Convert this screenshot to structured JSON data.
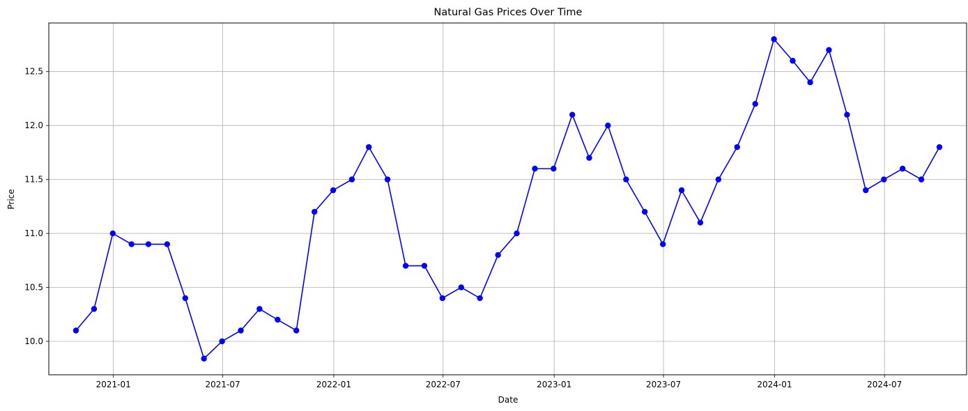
{
  "chart_data": {
    "type": "line",
    "title": "Natural Gas Prices Over Time",
    "xlabel": "Date",
    "ylabel": "Price",
    "x": [
      "2020-10-31",
      "2020-11-30",
      "2020-12-31",
      "2021-01-31",
      "2021-02-28",
      "2021-03-31",
      "2021-04-30",
      "2021-05-31",
      "2021-06-30",
      "2021-07-31",
      "2021-08-31",
      "2021-09-30",
      "2021-10-31",
      "2021-11-30",
      "2021-12-31",
      "2022-01-31",
      "2022-02-28",
      "2022-03-31",
      "2022-04-30",
      "2022-05-31",
      "2022-06-30",
      "2022-07-31",
      "2022-08-31",
      "2022-09-30",
      "2022-10-31",
      "2022-11-30",
      "2022-12-31",
      "2023-01-31",
      "2023-02-28",
      "2023-03-31",
      "2023-04-30",
      "2023-05-31",
      "2023-06-30",
      "2023-07-31",
      "2023-08-31",
      "2023-09-30",
      "2023-10-31",
      "2023-11-30",
      "2023-12-31",
      "2024-01-31",
      "2024-02-29",
      "2024-03-31",
      "2024-04-30",
      "2024-05-31",
      "2024-06-30",
      "2024-07-31",
      "2024-08-31",
      "2024-09-30"
    ],
    "series": [
      {
        "values": [
          10.1,
          10.3,
          11.0,
          10.9,
          10.9,
          10.9,
          10.4,
          9.84,
          10.0,
          10.1,
          10.3,
          10.2,
          10.1,
          11.2,
          11.4,
          11.5,
          11.8,
          11.5,
          10.7,
          10.7,
          10.4,
          10.5,
          10.4,
          10.8,
          11.0,
          11.6,
          11.6,
          12.1,
          11.7,
          12.0,
          11.5,
          11.2,
          10.9,
          11.4,
          11.1,
          11.5,
          11.8,
          12.2,
          12.8,
          12.6,
          12.4,
          12.7,
          12.1,
          11.4,
          11.5,
          11.6,
          11.5,
          11.8
        ],
        "color": "#0000ff",
        "marker": "circle"
      }
    ],
    "x_ticks": [
      "2021-01",
      "2021-07",
      "2022-01",
      "2022-07",
      "2023-01",
      "2023-07",
      "2024-01",
      "2024-07"
    ],
    "y_ticks": [
      "10.0",
      "10.5",
      "11.0",
      "11.5",
      "12.0",
      "12.5"
    ],
    "xlim": [
      "2020-09-16",
      "2024-11-14"
    ],
    "ylim": [
      9.69,
      12.95
    ],
    "grid": true,
    "legend": "none"
  }
}
